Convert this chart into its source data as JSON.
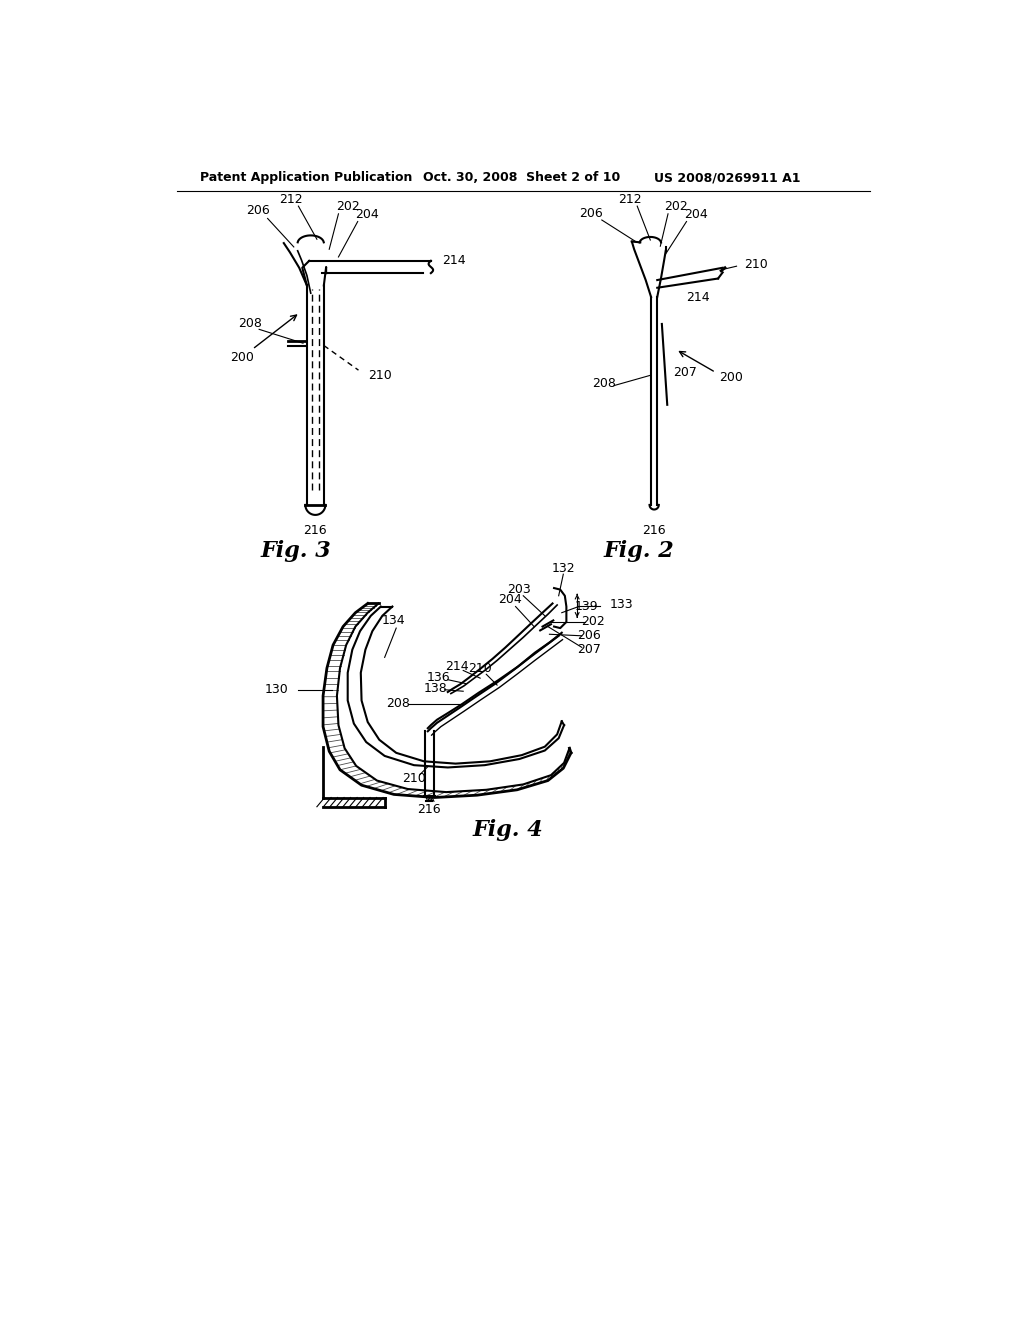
{
  "header_left": "Patent Application Publication",
  "header_center": "Oct. 30, 2008  Sheet 2 of 10",
  "header_right": "US 2008/0269911 A1",
  "fig3_label": "Fig. 3",
  "fig2_label": "Fig. 2",
  "fig4_label": "Fig. 4",
  "bg_color": "#ffffff",
  "line_color": "#000000",
  "font_size_header": 9,
  "font_size_label": 16,
  "font_size_ref": 9
}
